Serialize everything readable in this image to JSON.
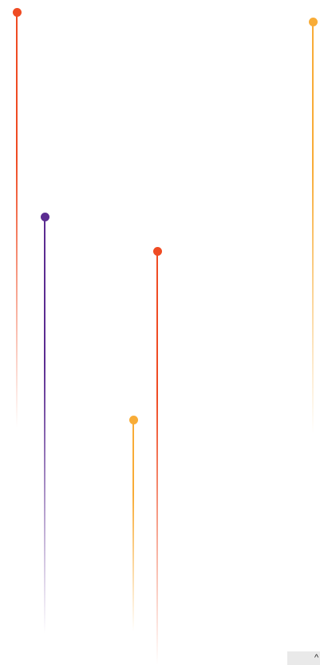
{
  "colors": {
    "orange_red": "#ef4b23",
    "amber": "#f8ac37",
    "purple": "#5b2c91"
  },
  "drops": [
    {
      "color": "#ef4b23"
    },
    {
      "color": "#5b2c91"
    },
    {
      "color": "#ef4b23"
    },
    {
      "color": "#f8ac37"
    },
    {
      "color": "#f8ac37"
    }
  ],
  "corner_widget": {
    "glyph": "^"
  }
}
